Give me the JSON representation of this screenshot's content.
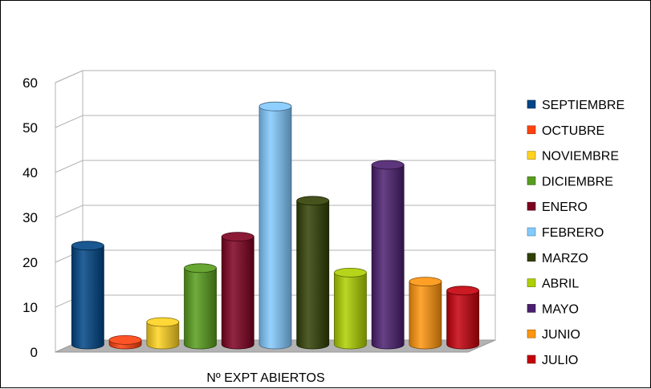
{
  "chart_data": {
    "type": "bar",
    "title": "",
    "xlabel": "",
    "ylabel": "",
    "x_category_label": "Nº EXPT ABIERTOS",
    "ylim": [
      0,
      60
    ],
    "yticks": [
      "0",
      "10",
      "20",
      "30",
      "40",
      "50",
      "60"
    ],
    "grid": true,
    "legend_position": "right",
    "series": [
      {
        "name": "SEPTIEMBRE",
        "value": 22,
        "color": "#004586"
      },
      {
        "name": "OCTUBRE",
        "value": 1,
        "color": "#ff420e"
      },
      {
        "name": "NOVIEMBRE",
        "value": 5,
        "color": "#ffd320"
      },
      {
        "name": "DICIEMBRE",
        "value": 17,
        "color": "#579d1c"
      },
      {
        "name": "ENERO",
        "value": 24,
        "color": "#7e0021"
      },
      {
        "name": "FEBRERO",
        "value": 53,
        "color": "#83caff"
      },
      {
        "name": "MARZO",
        "value": 32,
        "color": "#314004"
      },
      {
        "name": "ABRIL",
        "value": 16,
        "color": "#aecf00"
      },
      {
        "name": "MAYO",
        "value": 40,
        "color": "#4b1f6f"
      },
      {
        "name": "JUNIO",
        "value": 14,
        "color": "#ff950e"
      },
      {
        "name": "JULIO",
        "value": 12,
        "color": "#c5000b"
      }
    ]
  }
}
